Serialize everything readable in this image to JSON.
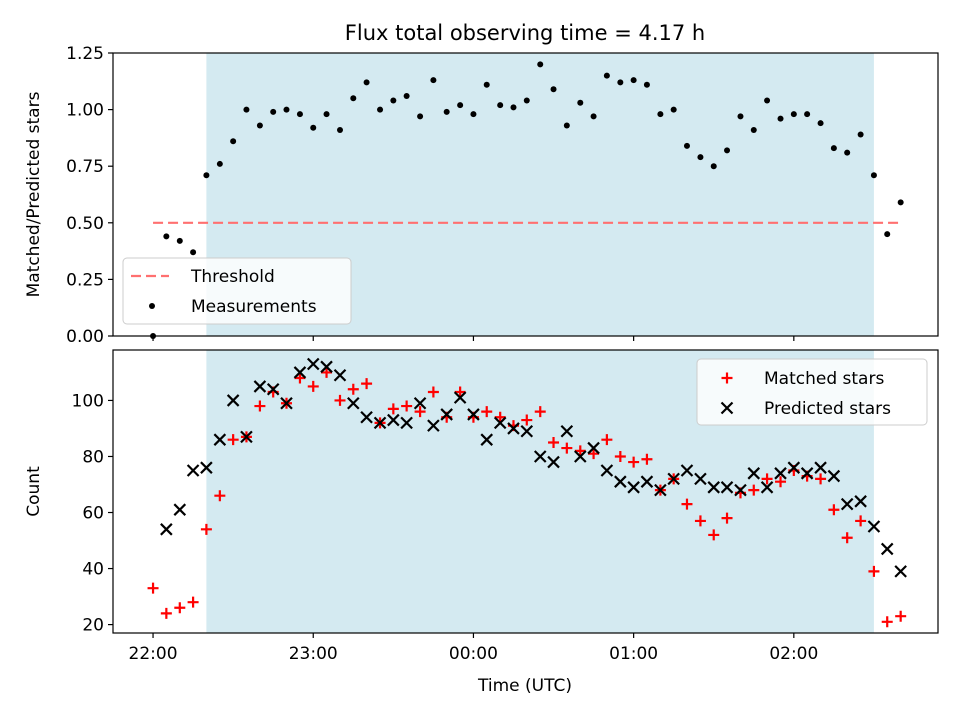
{
  "figure": {
    "title": "Flux total observing time = 4.17 h",
    "xlabel": "Time (UTC)",
    "shade_color": "#d4eaf1"
  },
  "chart_data": [
    {
      "type": "scatter",
      "title": "Flux total observing time = 4.17 h",
      "xlabel": "",
      "ylabel": "Matched/Predicted stars",
      "xlim": [
        -0.25,
        4.9
      ],
      "ylim": [
        0,
        1.25
      ],
      "yticks": [
        0,
        0.25,
        0.5,
        0.75,
        1.0,
        1.25
      ],
      "ytick_labels": [
        "0.00",
        "0.25",
        "0.50",
        "0.75",
        "1.00",
        "1.25"
      ],
      "shaded_range": [
        0.333,
        4.5
      ],
      "legend_position": "lower left",
      "threshold": {
        "name": "Threshold",
        "x": [
          0,
          4.667
        ],
        "y": 0.5,
        "color": "#ff7070",
        "style": "dashed"
      },
      "series": [
        {
          "name": "Measurements",
          "color": "#000000",
          "marker": "dot",
          "x": [
            0.0,
            0.083,
            0.167,
            0.25,
            0.333,
            0.417,
            0.5,
            0.583,
            0.667,
            0.75,
            0.833,
            0.917,
            1.0,
            1.083,
            1.167,
            1.25,
            1.333,
            1.417,
            1.5,
            1.583,
            1.667,
            1.75,
            1.833,
            1.917,
            2.0,
            2.083,
            2.167,
            2.25,
            2.333,
            2.417,
            2.5,
            2.583,
            2.667,
            2.75,
            2.833,
            2.917,
            3.0,
            3.083,
            3.167,
            3.25,
            3.333,
            3.417,
            3.5,
            3.583,
            3.667,
            3.75,
            3.833,
            3.917,
            4.0,
            4.083,
            4.167,
            4.25,
            4.333,
            4.417,
            4.5,
            4.583,
            4.667
          ],
          "y": [
            0.0,
            0.44,
            0.42,
            0.37,
            0.71,
            0.76,
            0.86,
            1.0,
            0.93,
            0.99,
            1.0,
            0.98,
            0.92,
            0.98,
            0.91,
            1.05,
            1.12,
            1.0,
            1.04,
            1.06,
            0.97,
            1.13,
            0.99,
            1.02,
            0.98,
            1.11,
            1.02,
            1.01,
            1.04,
            1.2,
            1.09,
            0.93,
            1.03,
            0.97,
            1.15,
            1.12,
            1.13,
            1.11,
            0.98,
            1.0,
            0.84,
            0.79,
            0.75,
            0.82,
            0.97,
            0.91,
            1.04,
            0.96,
            0.98,
            0.98,
            0.94,
            0.83,
            0.81,
            0.89,
            0.71,
            0.45,
            0.59
          ]
        }
      ]
    },
    {
      "type": "scatter",
      "title": "",
      "xlabel": "Time (UTC)",
      "ylabel": "Count",
      "xlim": [
        -0.25,
        4.9
      ],
      "ylim": [
        17,
        118
      ],
      "yticks": [
        20,
        40,
        60,
        80,
        100
      ],
      "xticks": [
        0,
        1,
        2,
        3,
        4
      ],
      "xtick_labels": [
        "22:00",
        "23:00",
        "00:00",
        "01:00",
        "02:00"
      ],
      "shaded_range": [
        0.333,
        4.5
      ],
      "legend_position": "upper right",
      "series": [
        {
          "name": "Matched stars",
          "color": "#ff0000",
          "marker": "plus",
          "x": [
            0.0,
            0.083,
            0.167,
            0.25,
            0.333,
            0.417,
            0.5,
            0.583,
            0.667,
            0.75,
            0.833,
            0.917,
            1.0,
            1.083,
            1.167,
            1.25,
            1.333,
            1.417,
            1.5,
            1.583,
            1.667,
            1.75,
            1.833,
            1.917,
            2.0,
            2.083,
            2.167,
            2.25,
            2.333,
            2.417,
            2.5,
            2.583,
            2.667,
            2.75,
            2.833,
            2.917,
            3.0,
            3.083,
            3.167,
            3.25,
            3.333,
            3.417,
            3.5,
            3.583,
            3.667,
            3.75,
            3.833,
            3.917,
            4.0,
            4.083,
            4.167,
            4.25,
            4.333,
            4.417,
            4.5,
            4.583,
            4.667
          ],
          "y": [
            33,
            24,
            26,
            28,
            54,
            66,
            86,
            87,
            98,
            103,
            99,
            108,
            105,
            110,
            100,
            104,
            106,
            92,
            97,
            98,
            96,
            103,
            94,
            103,
            94,
            96,
            94,
            91,
            93,
            96,
            85,
            83,
            82,
            81,
            86,
            80,
            78,
            79,
            68,
            72,
            63,
            57,
            52,
            58,
            67,
            68,
            72,
            71,
            75,
            73,
            72,
            61,
            51,
            57,
            39,
            21,
            23
          ]
        },
        {
          "name": "Predicted stars",
          "color": "#000000",
          "marker": "x",
          "x": [
            0.083,
            0.167,
            0.25,
            0.333,
            0.417,
            0.5,
            0.583,
            0.667,
            0.75,
            0.833,
            0.917,
            1.0,
            1.083,
            1.167,
            1.25,
            1.333,
            1.417,
            1.5,
            1.583,
            1.667,
            1.75,
            1.833,
            1.917,
            2.0,
            2.083,
            2.167,
            2.25,
            2.333,
            2.417,
            2.5,
            2.583,
            2.667,
            2.75,
            2.833,
            2.917,
            3.0,
            3.083,
            3.167,
            3.25,
            3.333,
            3.417,
            3.5,
            3.583,
            3.667,
            3.75,
            3.833,
            3.917,
            4.0,
            4.083,
            4.167,
            4.25,
            4.333,
            4.417,
            4.5,
            4.583,
            4.667
          ],
          "y": [
            54,
            61,
            75,
            76,
            86,
            100,
            87,
            105,
            104,
            99,
            110,
            113,
            112,
            109,
            99,
            94,
            92,
            93,
            92,
            99,
            91,
            95,
            101,
            95,
            86,
            92,
            90,
            89,
            80,
            78,
            89,
            80,
            83,
            75,
            71,
            69,
            71,
            68,
            72,
            75,
            72,
            69,
            69,
            68,
            74,
            69,
            74,
            76,
            74,
            76,
            73,
            63,
            64,
            55,
            47,
            39
          ]
        }
      ]
    }
  ]
}
